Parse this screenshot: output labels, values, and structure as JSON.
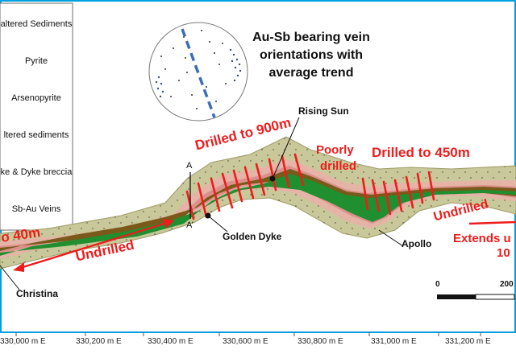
{
  "legend": {
    "items": [
      {
        "label": "altered Sediments",
        "color": "#c9c89a"
      },
      {
        "label": "Pyrite",
        "color": "#e8b1a8"
      },
      {
        "label": "Arsenopyrite",
        "color": "#d98b86"
      },
      {
        "label": "ltered sediments",
        "color": "#c9c89a"
      },
      {
        "label": "ke & Dyke breccia",
        "color": "#7a5a1a"
      },
      {
        "label": "Sb-Au Veins",
        "color": "#1f8f2f"
      }
    ]
  },
  "stereonet": {
    "title_lines": [
      "Au-Sb bearing vein",
      "orientations with",
      "average trend"
    ],
    "trend_line_color": "#3a6fb5"
  },
  "places": {
    "rising_sun": "Rising Sun",
    "golden_dyke": "Golden Dyke",
    "apollo": "Apollo",
    "christina": "Christina"
  },
  "section": {
    "a": "A",
    "a_prime": "A’"
  },
  "annotations": {
    "drilled_900": "Drilled to 900m",
    "poorly_drilled": [
      "Poorly",
      "drilled"
    ],
    "drilled_450": "Drilled to 450m",
    "to_40m": "o 40m",
    "undrilled_left": "Undrilled",
    "undrilled_right": "Undrilled",
    "extends": [
      "Extends u",
      "10"
    ]
  },
  "colors": {
    "annotation_red": "#ee1c1c",
    "map_border": "#00a0e0",
    "vein_green": "#1f8f2f",
    "halo": "#c9c89a"
  },
  "scale_bar": {
    "zero": "0",
    "end": "200"
  },
  "x_ticks": [
    "330,000 m E",
    "330,200 m E",
    "330,400 m E",
    "330,600 m E",
    "330,800 m E",
    "331,000 m E",
    "331,200 m E"
  ]
}
